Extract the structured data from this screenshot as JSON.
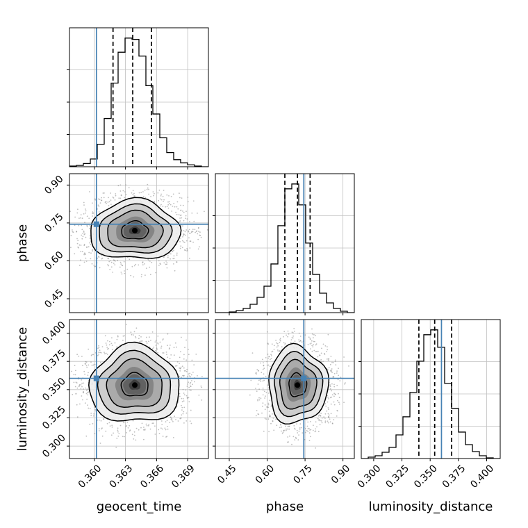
{
  "chart_data": {
    "type": "corner",
    "parameters": [
      "geocent_time",
      "phase",
      "luminosity_distance"
    ],
    "axis_labels": {
      "geocent_time": "geocent_time",
      "phase": "phase",
      "luminosity_distance": "luminosity_distance"
    },
    "ranges": {
      "geocent_time": [
        0.3576,
        0.371
      ],
      "phase": [
        0.395,
        0.945
      ],
      "luminosity_distance": [
        0.289,
        0.412
      ]
    },
    "ticks": {
      "geocent_time": [
        0.36,
        0.363,
        0.366,
        0.369
      ],
      "phase": [
        0.45,
        0.6,
        0.75,
        0.9
      ],
      "luminosity_distance": [
        0.3,
        0.325,
        0.35,
        0.375,
        0.4
      ]
    },
    "tick_labels": {
      "geocent_time": [
        "0.360",
        "0.363",
        "0.366",
        "0.369"
      ],
      "phase": [
        "0.45",
        "0.60",
        "0.75",
        "0.90"
      ],
      "luminosity_distance": [
        "0.300",
        "0.325",
        "0.350",
        "0.375",
        "0.400"
      ]
    },
    "truths": {
      "geocent_time": 0.3602,
      "phase": 0.745,
      "luminosity_distance": 0.36
    },
    "quantiles": {
      "geocent_time": [
        0.3618,
        0.3637,
        0.3655
      ],
      "phase": [
        0.67,
        0.72,
        0.77
      ],
      "luminosity_distance": [
        0.34,
        0.354,
        0.369
      ]
    },
    "histograms": {
      "geocent_time": {
        "bins": [
          0.3576,
          0.35827,
          0.35894,
          0.35961,
          0.36028,
          0.36095,
          0.36162,
          0.36229,
          0.36296,
          0.36363,
          0.3643,
          0.36497,
          0.36564,
          0.36631,
          0.36698,
          0.36765,
          0.36832,
          0.36899,
          0.36966,
          0.37033,
          0.371
        ],
        "counts": [
          1,
          2,
          5,
          12,
          35,
          75,
          130,
          178,
          200,
          198,
          172,
          126,
          82,
          45,
          22,
          11,
          6,
          3,
          1,
          0
        ]
      },
      "phase": {
        "bins": [
          0.395,
          0.4225,
          0.45,
          0.4775,
          0.505,
          0.5325,
          0.56,
          0.5875,
          0.615,
          0.6425,
          0.67,
          0.6975,
          0.725,
          0.7525,
          0.78,
          0.8075,
          0.835,
          0.8625,
          0.89,
          0.9175,
          0.945
        ],
        "counts": [
          0,
          0,
          1,
          3,
          6,
          12,
          22,
          38,
          70,
          125,
          178,
          185,
          155,
          100,
          55,
          28,
          14,
          6,
          2,
          0
        ]
      },
      "luminosity_distance": {
        "bins": [
          0.289,
          0.29515,
          0.3013,
          0.30745,
          0.3136,
          0.31975,
          0.3259,
          0.33205,
          0.3382,
          0.34435,
          0.3505,
          0.35665,
          0.3628,
          0.36895,
          0.3751,
          0.38125,
          0.3874,
          0.39355,
          0.3997,
          0.40585,
          0.412
        ],
        "counts": [
          0,
          2,
          4,
          9,
          16,
          34,
          60,
          95,
          140,
          178,
          185,
          160,
          108,
          72,
          38,
          20,
          10,
          4,
          1,
          0
        ]
      }
    },
    "density_peaks": {
      "geocent_time,phase": {
        "x": 0.3639,
        "y": 0.72
      },
      "geocent_time,luminosity_distance": {
        "x": 0.3639,
        "y": 0.354
      },
      "phase,luminosity_distance": {
        "x": 0.72,
        "y": 0.354
      }
    },
    "colors": {
      "truth": "#4682b4",
      "hist": "#000000",
      "contour": "#000000",
      "density": "#000000",
      "points": "#888888",
      "grid": "#c0c0c0"
    },
    "grid": true
  }
}
